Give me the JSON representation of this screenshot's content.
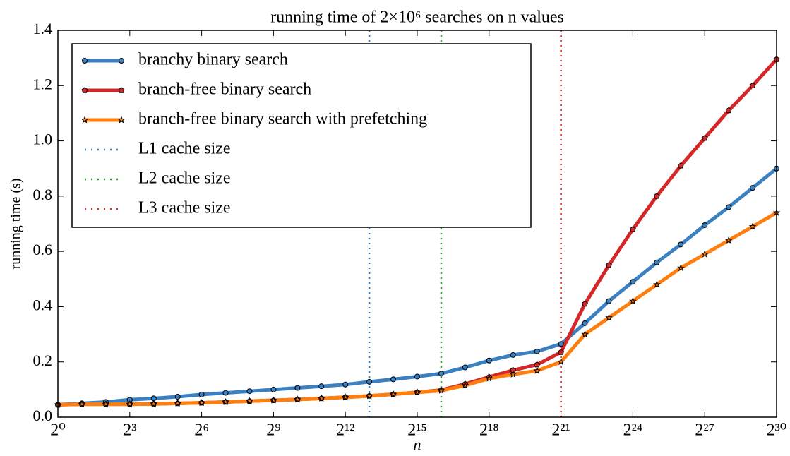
{
  "chart_data": {
    "type": "line",
    "title": "running time of 2×10⁶ searches on n values",
    "x_label": "n",
    "y_label": "running time (s)",
    "x_scale": "log",
    "log_base": 2,
    "x": [
      1,
      2,
      4,
      8,
      16,
      32,
      64,
      128,
      256,
      512,
      1024,
      2048,
      4096,
      8192,
      16384,
      32768,
      65536,
      131072,
      262144,
      524288,
      1048576,
      2097152,
      4194304,
      8388608,
      16777216,
      33554432,
      67108864,
      134217728,
      268435456,
      536870912,
      1073741824
    ],
    "series": [
      {
        "name": "branchy binary search",
        "color": "#3b80c0",
        "marker": "circle",
        "values": [
          0.045,
          0.05,
          0.055,
          0.063,
          0.068,
          0.074,
          0.082,
          0.088,
          0.094,
          0.1,
          0.106,
          0.112,
          0.118,
          0.128,
          0.137,
          0.147,
          0.158,
          0.18,
          0.205,
          0.225,
          0.238,
          0.265,
          0.34,
          0.42,
          0.49,
          0.56,
          0.625,
          0.695,
          0.76,
          0.83,
          0.9
        ]
      },
      {
        "name": "branch-free binary search",
        "color": "#d62728",
        "marker": "pentagon",
        "values": [
          0.045,
          0.047,
          0.047,
          0.047,
          0.048,
          0.05,
          0.052,
          0.055,
          0.058,
          0.061,
          0.064,
          0.068,
          0.072,
          0.077,
          0.083,
          0.09,
          0.098,
          0.12,
          0.145,
          0.17,
          0.19,
          0.235,
          0.41,
          0.55,
          0.68,
          0.8,
          0.91,
          1.01,
          1.11,
          1.2,
          1.295
        ]
      },
      {
        "name": "branch-free binary search with prefetching",
        "color": "#ff7f0e",
        "marker": "star",
        "values": [
          0.045,
          0.047,
          0.047,
          0.047,
          0.048,
          0.05,
          0.052,
          0.055,
          0.058,
          0.061,
          0.064,
          0.068,
          0.072,
          0.077,
          0.083,
          0.09,
          0.096,
          0.115,
          0.14,
          0.155,
          0.168,
          0.2,
          0.3,
          0.36,
          0.42,
          0.48,
          0.54,
          0.59,
          0.64,
          0.69,
          0.74
        ]
      }
    ],
    "vlines": [
      {
        "name": "L1 cache size",
        "color": "#3b80c0",
        "x": 8192
      },
      {
        "name": "L2 cache size",
        "color": "#2ca02c",
        "x": 65536
      },
      {
        "name": "L3 cache size",
        "color": "#d62728",
        "x": 2097152
      }
    ],
    "xlim": [
      1,
      1073741824
    ],
    "ylim": [
      0,
      1.4
    ],
    "xticks": [
      {
        "value": 1,
        "label": "2⁰"
      },
      {
        "value": 8,
        "label": "2³"
      },
      {
        "value": 64,
        "label": "2⁶"
      },
      {
        "value": 512,
        "label": "2⁹"
      },
      {
        "value": 4096,
        "label": "2¹²"
      },
      {
        "value": 32768,
        "label": "2¹⁵"
      },
      {
        "value": 262144,
        "label": "2¹⁸"
      },
      {
        "value": 2097152,
        "label": "2²¹"
      },
      {
        "value": 16777216,
        "label": "2²⁴"
      },
      {
        "value": 134217728,
        "label": "2²⁷"
      },
      {
        "value": 1073741824,
        "label": "2³⁰"
      }
    ],
    "yticks": [
      {
        "value": 0,
        "label": "0.0"
      },
      0.2,
      0.4,
      0.6,
      0.8,
      {
        "value": 1,
        "label": "1.0"
      },
      1.2,
      1.4
    ],
    "grid": false,
    "legend": "upper left"
  }
}
